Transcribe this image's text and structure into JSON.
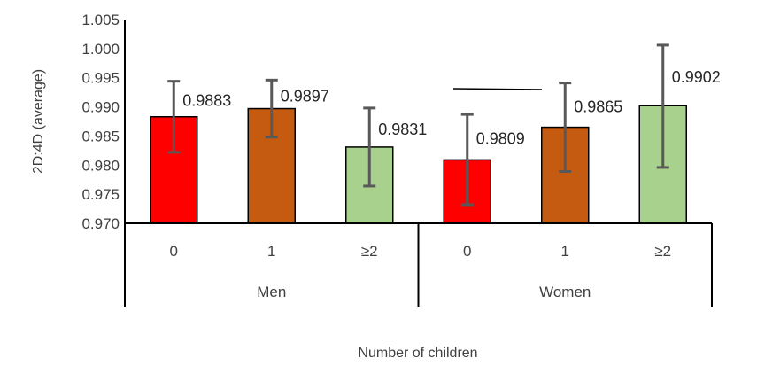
{
  "chart_data": {
    "type": "bar",
    "title": "",
    "ylabel": "2D:4D (average)",
    "xlabel": "Number of children",
    "ylim": [
      0.97,
      1.005
    ],
    "y_ticks": [
      "0.970",
      "0.975",
      "0.980",
      "0.985",
      "0.990",
      "0.995",
      "1.000",
      "1.005"
    ],
    "groups": [
      {
        "name": "Men",
        "categories": [
          "0",
          "1",
          "≥2"
        ],
        "values": [
          0.9883,
          0.9897,
          0.9831
        ],
        "labels": [
          "0.9883",
          "0.9897",
          "0.9831"
        ],
        "error_low": [
          0.9822,
          0.9848,
          0.9764
        ],
        "error_high": [
          0.9944,
          0.9946,
          0.9898
        ]
      },
      {
        "name": "Women",
        "categories": [
          "0",
          "1",
          "≥2"
        ],
        "values": [
          0.9809,
          0.9865,
          0.9902
        ],
        "labels": [
          "0.9809",
          "0.9865",
          "0.9902"
        ],
        "error_low": [
          0.9732,
          0.9789,
          0.9796
        ],
        "error_high": [
          0.9887,
          0.9941,
          1.0006
        ]
      }
    ],
    "bar_colors": [
      "#ff0000",
      "#c55a11",
      "#a9d18e"
    ],
    "error_bar_color": "#595959",
    "grid": false
  }
}
